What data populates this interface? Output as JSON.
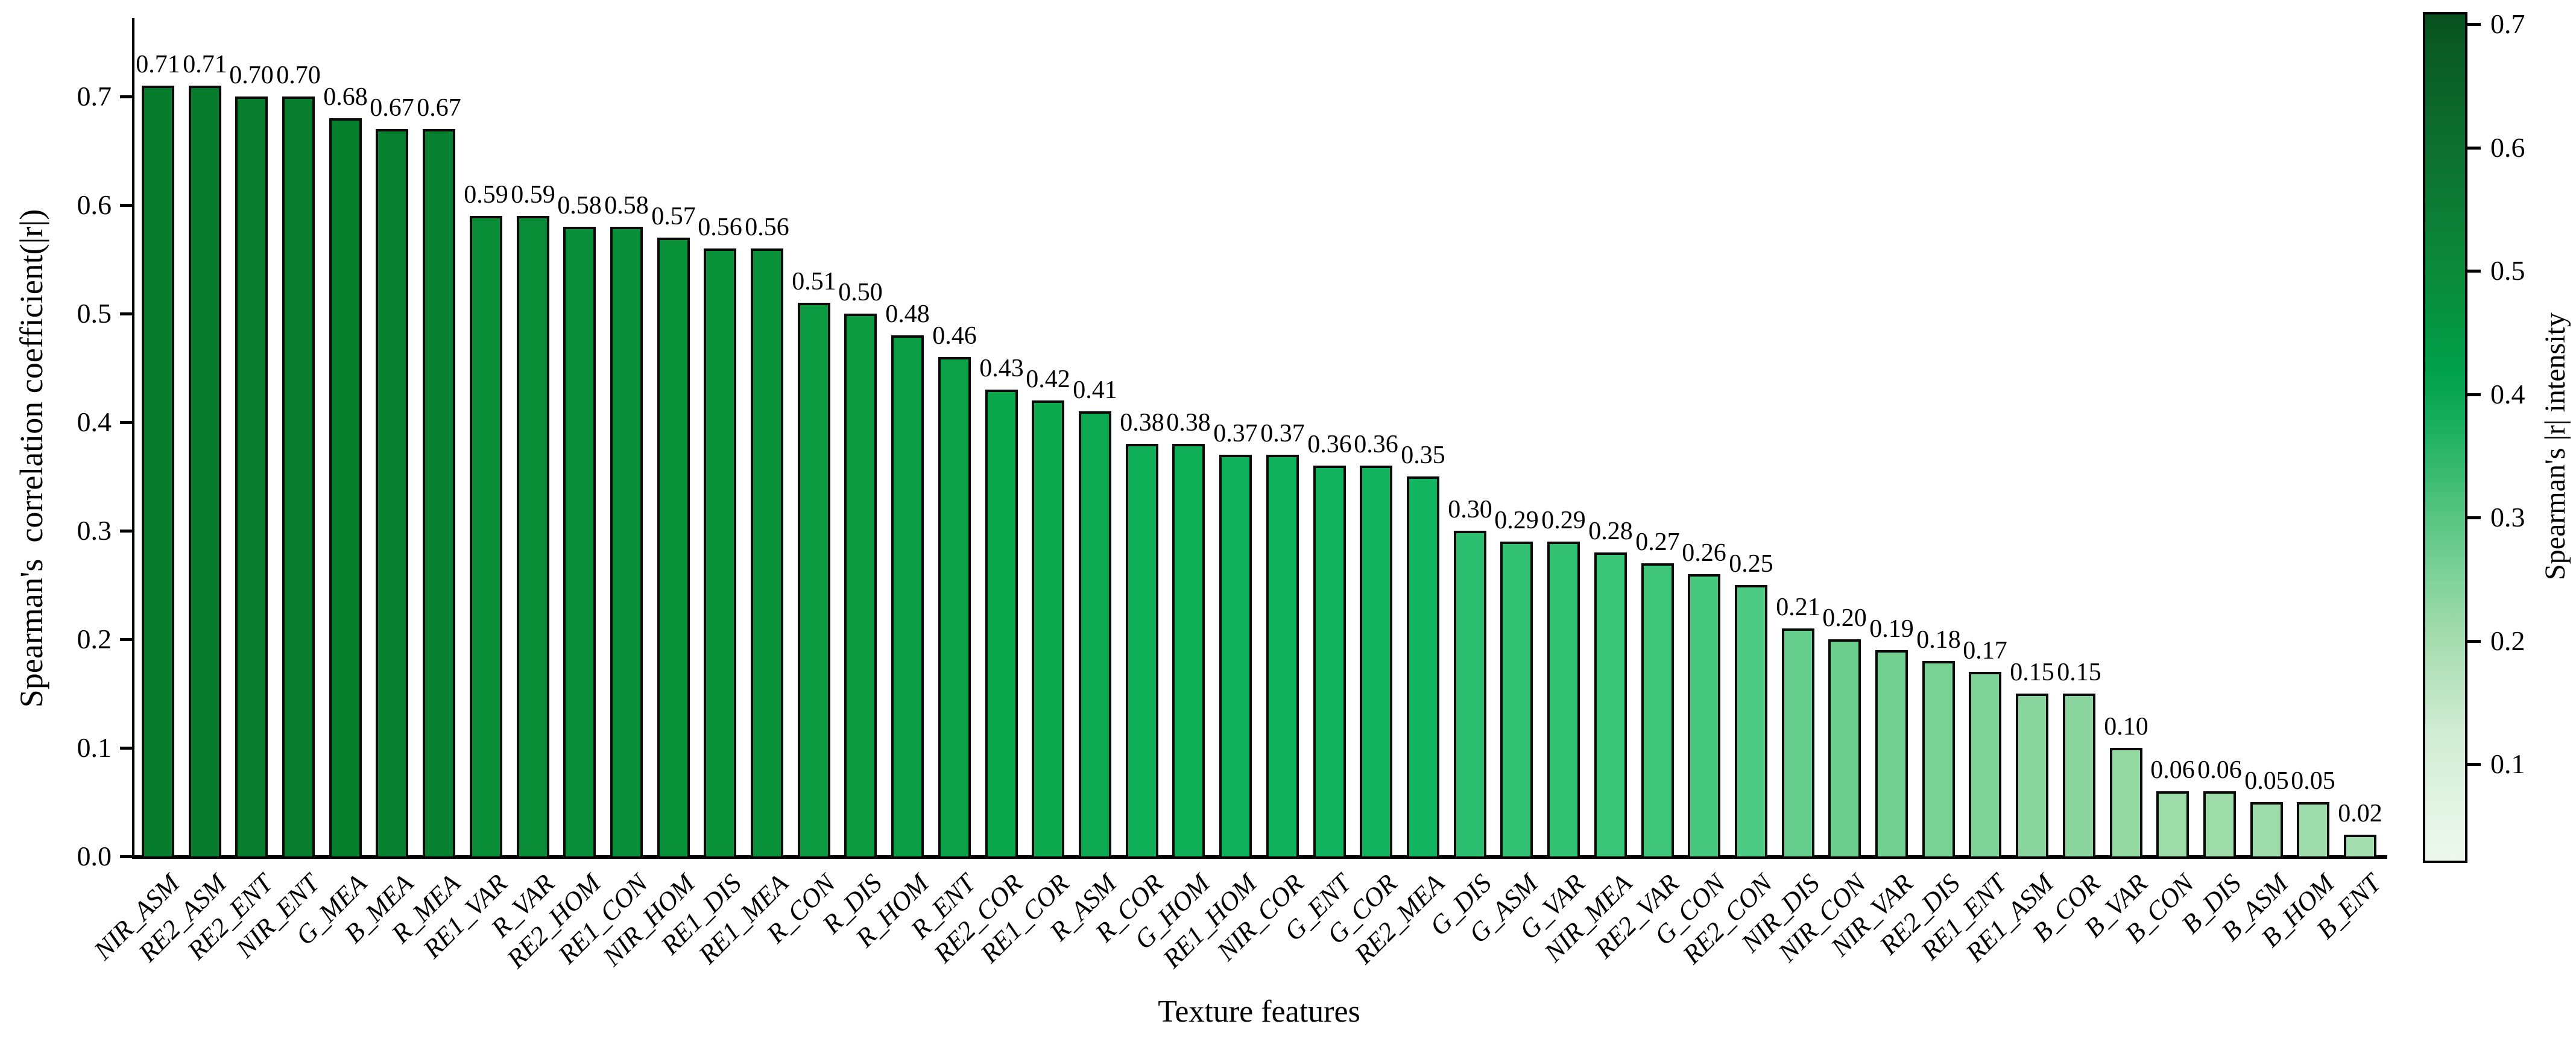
{
  "figure": {
    "y_axis_label": "Spearman's  correlation coefficient(|r|)",
    "x_axis_label": "Texture features",
    "colorbar_label": "Spearman's |r| intensity",
    "y_ticks": [
      "0.0",
      "0.1",
      "0.2",
      "0.3",
      "0.4",
      "0.5",
      "0.6",
      "0.7"
    ],
    "colorbar_ticks": [
      "0.1",
      "0.2",
      "0.3",
      "0.4",
      "0.5",
      "0.6",
      "0.7"
    ]
  },
  "chart_data": {
    "type": "bar",
    "title": "",
    "xlabel": "Texture features",
    "ylabel": "Spearman's  correlation coefficient(|r|)",
    "ylim": [
      0,
      0.77
    ],
    "grid": false,
    "legend": "none",
    "bar_edge_color": "#0a0a0a",
    "value_label_format": "2-decimals",
    "categories": [
      "NIR_ASM",
      "RE2_ASM",
      "RE2_ENT",
      "NIR_ENT",
      "G_MEA",
      "B_MEA",
      "R_MEA",
      "RE1_VAR",
      "R_VAR",
      "RE2_HOM",
      "RE1_CON",
      "NIR_HOM",
      "RE1_DIS",
      "RE1_MEA",
      "R_CON",
      "R_DIS",
      "R_HOM",
      "R_ENT",
      "RE2_COR",
      "RE1_COR",
      "R_ASM",
      "R_COR",
      "G_HOM",
      "RE1_HOM",
      "NIR_COR",
      "G_ENT",
      "G_COR",
      "RE2_MEA",
      "G_DIS",
      "G_ASM",
      "G_VAR",
      "NIR_MEA",
      "RE2_VAR",
      "G_CON",
      "RE2_CON",
      "NIR_DIS",
      "NIR_CON",
      "NIR_VAR",
      "RE2_DIS",
      "RE1_ENT",
      "RE1_ASM",
      "B_COR",
      "B_VAR",
      "B_CON",
      "B_DIS",
      "B_ASM",
      "B_HOM",
      "B_ENT"
    ],
    "values": [
      0.71,
      0.71,
      0.7,
      0.7,
      0.68,
      0.67,
      0.67,
      0.59,
      0.59,
      0.58,
      0.58,
      0.57,
      0.56,
      0.56,
      0.51,
      0.5,
      0.48,
      0.46,
      0.43,
      0.42,
      0.41,
      0.38,
      0.38,
      0.37,
      0.37,
      0.36,
      0.36,
      0.35,
      0.3,
      0.29,
      0.29,
      0.28,
      0.27,
      0.26,
      0.25,
      0.21,
      0.2,
      0.19,
      0.18,
      0.17,
      0.15,
      0.15,
      0.1,
      0.06,
      0.06,
      0.05,
      0.05,
      0.02
    ],
    "colorbar": {
      "label": "Spearman's |r| intensity",
      "min": 0.02,
      "max": 0.71,
      "ticks": [
        0.1,
        0.2,
        0.3,
        0.4,
        0.5,
        0.6,
        0.7
      ]
    },
    "bar_color_stops": [
      {
        "value": 0.02,
        "color": "#a5deb0"
      },
      {
        "value": 0.1,
        "color": "#94d8a2"
      },
      {
        "value": 0.15,
        "color": "#8ad69e"
      },
      {
        "value": 0.2,
        "color": "#6ccf8e"
      },
      {
        "value": 0.26,
        "color": "#46c87f"
      },
      {
        "value": 0.3,
        "color": "#2cbf70"
      },
      {
        "value": 0.35,
        "color": "#12b45f"
      },
      {
        "value": 0.43,
        "color": "#0ba74d"
      },
      {
        "value": 0.5,
        "color": "#0d9b42"
      },
      {
        "value": 0.57,
        "color": "#09913a"
      },
      {
        "value": 0.63,
        "color": "#088631"
      },
      {
        "value": 0.71,
        "color": "#077c2c"
      }
    ],
    "colorbar_gradient_stops": [
      {
        "value": 0.02,
        "color": "#eef8ee"
      },
      {
        "value": 0.12,
        "color": "#d3edd6"
      },
      {
        "value": 0.2,
        "color": "#a6dcb0"
      },
      {
        "value": 0.25,
        "color": "#7fd29b"
      },
      {
        "value": 0.3,
        "color": "#57c582"
      },
      {
        "value": 0.38,
        "color": "#15ad5c"
      },
      {
        "value": 0.42,
        "color": "#00a04a"
      },
      {
        "value": 0.5,
        "color": "#0b8a3a"
      },
      {
        "value": 0.6,
        "color": "#0d7030"
      },
      {
        "value": 0.68,
        "color": "#0a5c24"
      },
      {
        "value": 0.71,
        "color": "#084f1f"
      }
    ]
  }
}
